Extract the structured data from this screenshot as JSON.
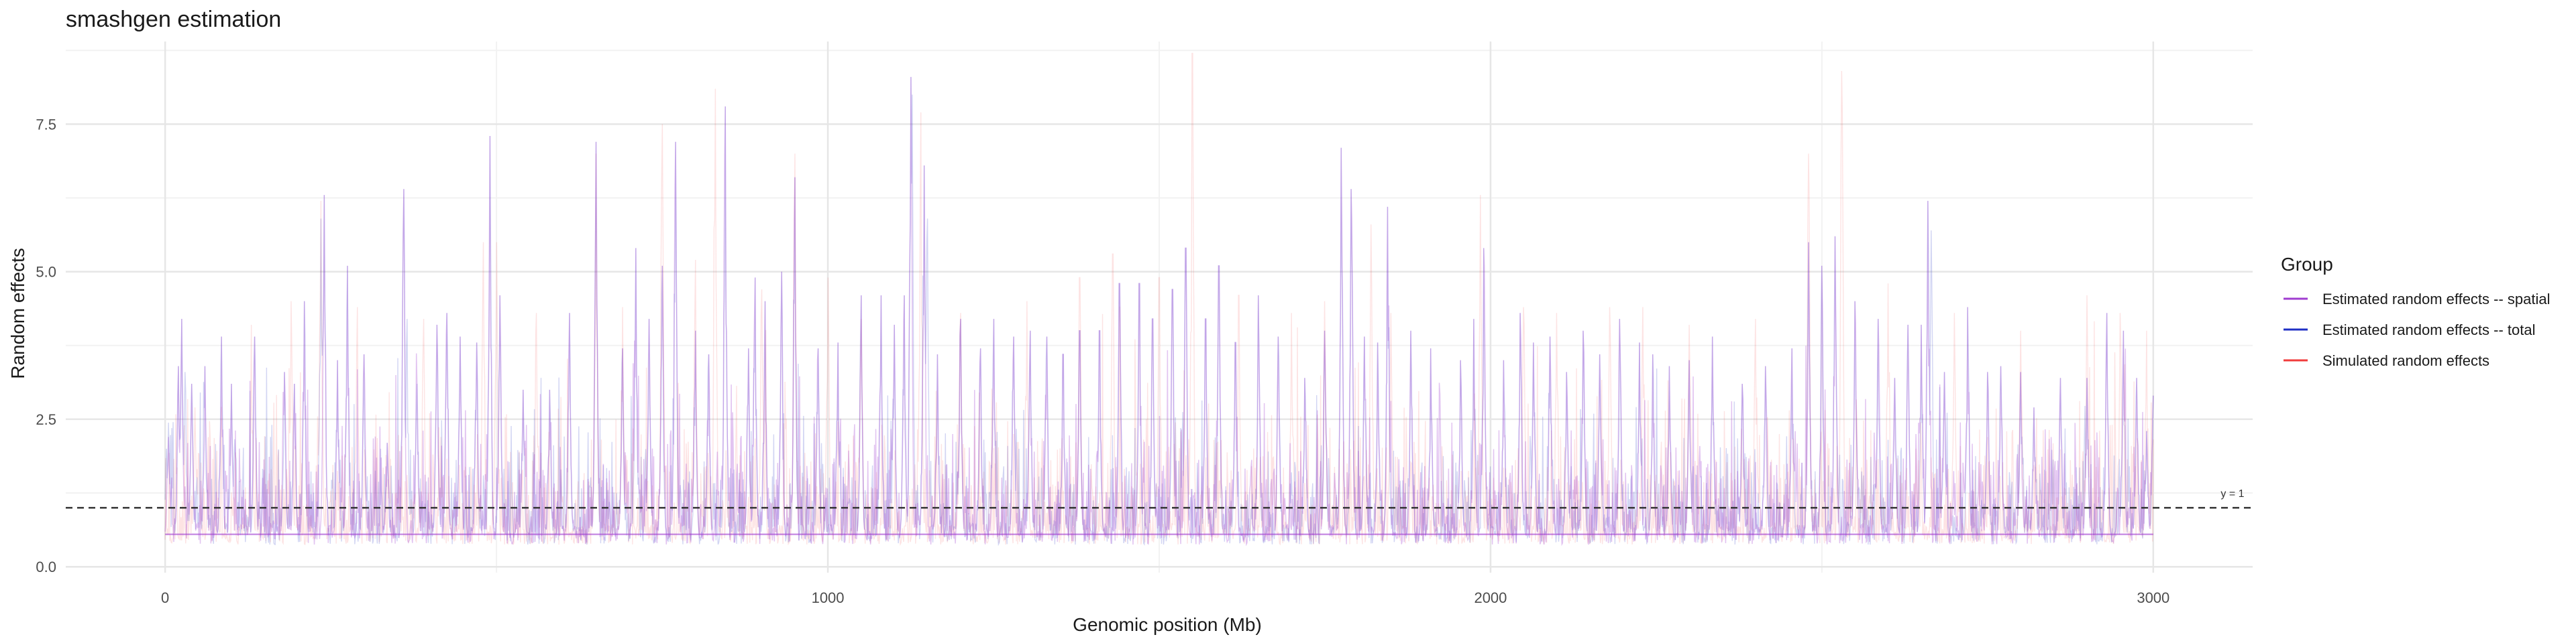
{
  "chart_data": {
    "type": "line",
    "title": "smashgen estimation",
    "xlabel": "Genomic position (Mb)",
    "ylabel": "Random effects",
    "xlim": [
      -150,
      3150
    ],
    "ylim": [
      -0.1,
      8.9
    ],
    "x_ticks": [
      0,
      1000,
      2000,
      3000
    ],
    "x_tick_labels": [
      "0",
      "1000",
      "2000",
      "3000"
    ],
    "y_ticks": [
      0.0,
      2.5,
      5.0,
      7.5
    ],
    "y_tick_labels": [
      "0.0",
      "2.5",
      "5.0",
      "7.5"
    ],
    "grid": true,
    "legend": {
      "title": "Group",
      "placement": "right",
      "entries": [
        {
          "label": "Estimated random effects -- spatial",
          "color": "#a03cd0"
        },
        {
          "label": "Estimated random effects -- total",
          "color": "#1f2fc4"
        },
        {
          "label": "Simulated random effects",
          "color": "#f03c3c"
        }
      ]
    },
    "reference_line": {
      "y": 1,
      "label": "y = 1",
      "style": "dashed",
      "color": "#333333"
    },
    "x_range": [
      0,
      3000
    ],
    "n_points": 3000,
    "baseline": 0.55,
    "peaks": {
      "spatial": [
        [
          5,
          2.2
        ],
        [
          20,
          3.4
        ],
        [
          25,
          4.2
        ],
        [
          40,
          3.1
        ],
        [
          60,
          3.4
        ],
        [
          85,
          3.9
        ],
        [
          100,
          3.1
        ],
        [
          135,
          3.9
        ],
        [
          180,
          3.3
        ],
        [
          195,
          3.1
        ],
        [
          210,
          4.5
        ],
        [
          240,
          6.3
        ],
        [
          260,
          3.5
        ],
        [
          275,
          5.1
        ],
        [
          300,
          3.6
        ],
        [
          335,
          2.1
        ],
        [
          360,
          6.4
        ],
        [
          380,
          3.1
        ],
        [
          410,
          4.1
        ],
        [
          425,
          4.3
        ],
        [
          445,
          3.9
        ],
        [
          470,
          3.8
        ],
        [
          490,
          7.3
        ],
        [
          505,
          4.6
        ],
        [
          540,
          3.0
        ],
        [
          580,
          3.0
        ],
        [
          610,
          4.3
        ],
        [
          650,
          7.2
        ],
        [
          690,
          3.7
        ],
        [
          710,
          5.4
        ],
        [
          730,
          4.2
        ],
        [
          750,
          5.1
        ],
        [
          770,
          7.2
        ],
        [
          800,
          4.0
        ],
        [
          820,
          3.6
        ],
        [
          845,
          7.8
        ],
        [
          880,
          3.7
        ],
        [
          890,
          4.9
        ],
        [
          905,
          4.5
        ],
        [
          930,
          5.0
        ],
        [
          950,
          6.6
        ],
        [
          985,
          3.7
        ],
        [
          1015,
          3.8
        ],
        [
          1050,
          4.6
        ],
        [
          1080,
          4.6
        ],
        [
          1100,
          4.1
        ],
        [
          1115,
          4.6
        ],
        [
          1125,
          8.3
        ],
        [
          1145,
          6.8
        ],
        [
          1165,
          3.6
        ],
        [
          1200,
          4.2
        ],
        [
          1230,
          3.7
        ],
        [
          1250,
          4.2
        ],
        [
          1280,
          3.9
        ],
        [
          1305,
          4.0
        ],
        [
          1330,
          3.9
        ],
        [
          1355,
          3.6
        ],
        [
          1380,
          4.0
        ],
        [
          1410,
          4.0
        ],
        [
          1440,
          4.8
        ],
        [
          1470,
          4.8
        ],
        [
          1490,
          4.2
        ],
        [
          1520,
          4.7
        ],
        [
          1540,
          5.4
        ],
        [
          1570,
          4.2
        ],
        [
          1590,
          5.1
        ],
        [
          1615,
          3.8
        ],
        [
          1650,
          4.6
        ],
        [
          1680,
          3.9
        ],
        [
          1720,
          3.2
        ],
        [
          1750,
          4.0
        ],
        [
          1775,
          7.1
        ],
        [
          1790,
          6.4
        ],
        [
          1810,
          3.9
        ],
        [
          1830,
          3.8
        ],
        [
          1845,
          6.1
        ],
        [
          1880,
          4.0
        ],
        [
          1910,
          3.7
        ],
        [
          1955,
          3.5
        ],
        [
          1975,
          4.2
        ],
        [
          1990,
          5.4
        ],
        [
          2020,
          3.5
        ],
        [
          2045,
          4.3
        ],
        [
          2065,
          3.8
        ],
        [
          2090,
          3.9
        ],
        [
          2115,
          3.3
        ],
        [
          2140,
          4.0
        ],
        [
          2165,
          3.6
        ],
        [
          2195,
          4.2
        ],
        [
          2225,
          3.8
        ],
        [
          2245,
          3.6
        ],
        [
          2270,
          3.4
        ],
        [
          2300,
          3.5
        ],
        [
          2335,
          3.9
        ],
        [
          2380,
          3.1
        ],
        [
          2415,
          3.4
        ],
        [
          2455,
          3.7
        ],
        [
          2480,
          5.5
        ],
        [
          2500,
          5.1
        ],
        [
          2520,
          5.6
        ],
        [
          2550,
          4.5
        ],
        [
          2585,
          4.2
        ],
        [
          2610,
          3.2
        ],
        [
          2630,
          4.1
        ],
        [
          2650,
          4.1
        ],
        [
          2660,
          6.2
        ],
        [
          2685,
          3.3
        ],
        [
          2720,
          4.4
        ],
        [
          2750,
          3.3
        ],
        [
          2770,
          3.4
        ],
        [
          2800,
          3.3
        ],
        [
          2820,
          2.7
        ],
        [
          2860,
          3.2
        ],
        [
          2900,
          3.2
        ],
        [
          2930,
          4.3
        ],
        [
          2955,
          4.0
        ],
        [
          2975,
          3.2
        ],
        [
          2990,
          2.3
        ],
        [
          3000,
          2.9
        ]
      ],
      "total": [
        [
          2,
          2.0
        ],
        [
          30,
          3.3
        ],
        [
          235,
          5.9
        ],
        [
          365,
          4.2
        ],
        [
          1127,
          8.0
        ],
        [
          1150,
          5.9
        ],
        [
          1540,
          5.2
        ],
        [
          1775,
          6.5
        ],
        [
          2665,
          5.7
        ]
      ],
      "simulated": [
        [
          45,
          2.7
        ],
        [
          130,
          4.1
        ],
        [
          190,
          4.5
        ],
        [
          235,
          6.2
        ],
        [
          290,
          4.4
        ],
        [
          390,
          4.2
        ],
        [
          480,
          5.5
        ],
        [
          500,
          5.5
        ],
        [
          560,
          4.3
        ],
        [
          650,
          7.0
        ],
        [
          690,
          4.4
        ],
        [
          750,
          7.5
        ],
        [
          800,
          5.2
        ],
        [
          830,
          8.1
        ],
        [
          900,
          4.7
        ],
        [
          950,
          7.0
        ],
        [
          1000,
          4.9
        ],
        [
          1050,
          4.2
        ],
        [
          1140,
          7.7
        ],
        [
          1200,
          4.3
        ],
        [
          1300,
          4.5
        ],
        [
          1380,
          4.9
        ],
        [
          1430,
          5.3
        ],
        [
          1500,
          4.9
        ],
        [
          1550,
          8.7
        ],
        [
          1620,
          4.6
        ],
        [
          1700,
          4.3
        ],
        [
          1750,
          4.5
        ],
        [
          1820,
          5.8
        ],
        [
          1850,
          4.3
        ],
        [
          1985,
          6.3
        ],
        [
          2050,
          4.4
        ],
        [
          2100,
          4.3
        ],
        [
          2180,
          4.4
        ],
        [
          2230,
          4.4
        ],
        [
          2300,
          4.1
        ],
        [
          2400,
          4.2
        ],
        [
          2480,
          7.0
        ],
        [
          2530,
          8.4
        ],
        [
          2600,
          4.8
        ],
        [
          2700,
          4.3
        ],
        [
          2800,
          4.0
        ],
        [
          2900,
          4.6
        ],
        [
          2950,
          4.3
        ],
        [
          2990,
          4.0
        ]
      ]
    }
  }
}
